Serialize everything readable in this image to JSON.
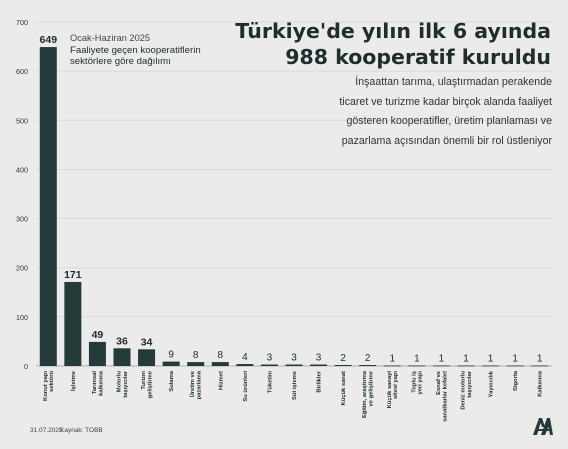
{
  "header": {
    "title_line1": "Türkiye'de yılın ilk 6 ayında",
    "title_line2": "988 kooperatif kuruldu",
    "description": "İnşaattan tarıma, ulaştırmadan perakende ticaret ve turizme kadar birçok alanda faaliyet gösteren kooperatifler, üretim planlaması ve pazarlama açısından önemli bir rol üstleniyor",
    "period": "Ocak-Haziran 2025",
    "subtitle": "Faaliyete geçen kooperatiflerin sektörlere göre dağılımı"
  },
  "footer": {
    "date": "31.07.2025",
    "source": "Kaynak: TOBB",
    "logo": "aa-logo"
  },
  "colors": {
    "bar": "#243b39",
    "background": "#ebebeb",
    "grid": "#d4d6d4"
  },
  "chart_data": {
    "type": "bar",
    "title": "",
    "xlabel": "",
    "ylabel": "",
    "ylim": [
      0,
      700
    ],
    "yticks": [
      0,
      100,
      200,
      300,
      400,
      500,
      600,
      700
    ],
    "grid": true,
    "categories": [
      "Konut yapı sektörü",
      "İşletme",
      "Tarımsal kalkınma",
      "Motorlu taşıyıcılar",
      "Turizm geliştirme",
      "Sulama",
      "Üretim ve pazarlama",
      "Hizmet",
      "Su ürünleri",
      "Tüketim",
      "Süt işleme",
      "Birlikler",
      "Küçük sanat",
      "Eğitim, araştırma ve geliştirme",
      "Küçük sanayi sitesi yapı",
      "Toplu iş yeri yapı",
      "Esnaf ve sanatkarlar kefalet",
      "Deniz motorlu taşıyıcılar",
      "Yayıncılık",
      "Sigorta",
      "Kalkınma"
    ],
    "values": [
      649,
      171,
      49,
      36,
      34,
      9,
      8,
      8,
      4,
      3,
      3,
      3,
      2,
      2,
      1,
      1,
      1,
      1,
      1,
      1,
      1
    ]
  }
}
